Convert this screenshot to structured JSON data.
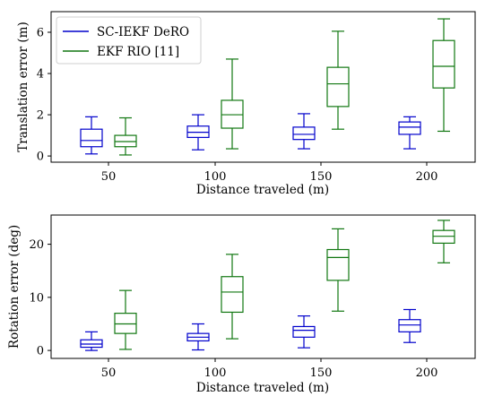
{
  "colors": {
    "blue": "#0000cc",
    "green": "#117711"
  },
  "chart_data": [
    {
      "type": "box",
      "xlabel": "Distance traveled (m)",
      "ylabel": "Translation error (m)",
      "categories": [
        "50",
        "100",
        "150",
        "200"
      ],
      "ylim": [
        -0.3,
        7.0
      ],
      "yticks": [
        0,
        2,
        4,
        6
      ],
      "grid": false,
      "legend": {
        "position": "top-left",
        "entries": [
          "SC-IEKF DeRO",
          "EKF RIO [11]"
        ]
      },
      "series": [
        {
          "name": "SC-IEKF DeRO",
          "color": "#0000cc",
          "boxes": [
            {
              "min": 0.1,
              "q1": 0.45,
              "median": 0.75,
              "q3": 1.3,
              "max": 1.9
            },
            {
              "min": 0.3,
              "q1": 0.9,
              "median": 1.15,
              "q3": 1.45,
              "max": 2.0
            },
            {
              "min": 0.35,
              "q1": 0.8,
              "median": 1.05,
              "q3": 1.4,
              "max": 2.05
            },
            {
              "min": 0.35,
              "q1": 1.05,
              "median": 1.4,
              "q3": 1.65,
              "max": 1.9
            }
          ]
        },
        {
          "name": "EKF RIO [11]",
          "color": "#117711",
          "boxes": [
            {
              "min": 0.05,
              "q1": 0.45,
              "median": 0.7,
              "q3": 1.0,
              "max": 1.85
            },
            {
              "min": 0.35,
              "q1": 1.35,
              "median": 2.0,
              "q3": 2.7,
              "max": 4.7
            },
            {
              "min": 1.3,
              "q1": 2.4,
              "median": 3.5,
              "q3": 4.3,
              "max": 6.05
            },
            {
              "min": 1.2,
              "q1": 3.3,
              "median": 4.35,
              "q3": 5.6,
              "max": 6.65
            }
          ]
        }
      ]
    },
    {
      "type": "box",
      "xlabel": "Distance traveled (m)",
      "ylabel": "Rotation error (deg)",
      "categories": [
        "50",
        "100",
        "150",
        "200"
      ],
      "ylim": [
        -1.5,
        25.5
      ],
      "yticks": [
        0,
        10,
        20
      ],
      "grid": false,
      "series": [
        {
          "name": "SC-IEKF DeRO",
          "color": "#0000cc",
          "boxes": [
            {
              "min": 0.0,
              "q1": 0.6,
              "median": 1.2,
              "q3": 2.0,
              "max": 3.5
            },
            {
              "min": 0.1,
              "q1": 1.8,
              "median": 2.5,
              "q3": 3.2,
              "max": 5.0
            },
            {
              "min": 0.5,
              "q1": 2.5,
              "median": 3.8,
              "q3": 4.5,
              "max": 6.5
            },
            {
              "min": 1.5,
              "q1": 3.5,
              "median": 4.8,
              "q3": 5.8,
              "max": 7.7
            }
          ]
        },
        {
          "name": "EKF RIO [11]",
          "color": "#117711",
          "boxes": [
            {
              "min": 0.2,
              "q1": 3.2,
              "median": 5.0,
              "q3": 7.0,
              "max": 11.3
            },
            {
              "min": 2.2,
              "q1": 7.2,
              "median": 11.0,
              "q3": 13.9,
              "max": 18.1
            },
            {
              "min": 7.4,
              "q1": 13.2,
              "median": 17.5,
              "q3": 19.0,
              "max": 22.9
            },
            {
              "min": 16.5,
              "q1": 20.2,
              "median": 21.5,
              "q3": 22.6,
              "max": 24.5
            }
          ]
        }
      ]
    }
  ]
}
